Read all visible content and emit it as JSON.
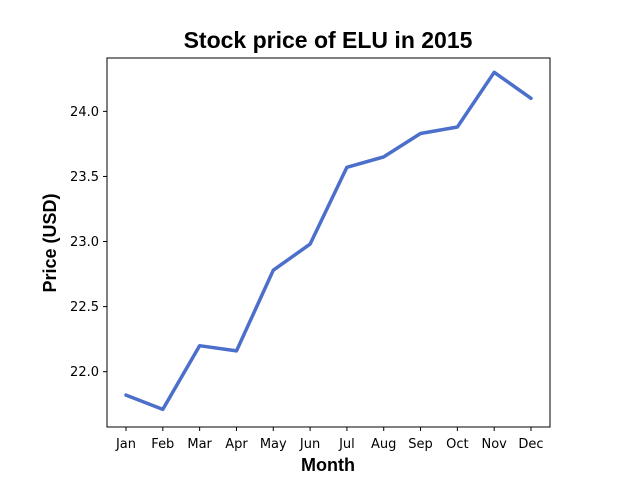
{
  "chart_data": {
    "type": "line",
    "title": "Stock price of ELU in 2015",
    "xlabel": "Month",
    "ylabel": "Price (USD)",
    "categories": [
      "Jan",
      "Feb",
      "Mar",
      "Apr",
      "May",
      "Jun",
      "Jul",
      "Aug",
      "Sep",
      "Oct",
      "Nov",
      "Dec"
    ],
    "series": [
      {
        "values": [
          21.82,
          21.71,
          22.2,
          22.16,
          22.78,
          22.98,
          23.57,
          23.65,
          23.83,
          23.88,
          24.3,
          24.1
        ],
        "color": "#4c6fcb"
      }
    ],
    "yticks": [
      "22.0",
      "22.5",
      "23.0",
      "23.5",
      "24.0"
    ],
    "ylim": [
      21.575,
      24.41
    ],
    "grid": false,
    "legend": "none"
  }
}
